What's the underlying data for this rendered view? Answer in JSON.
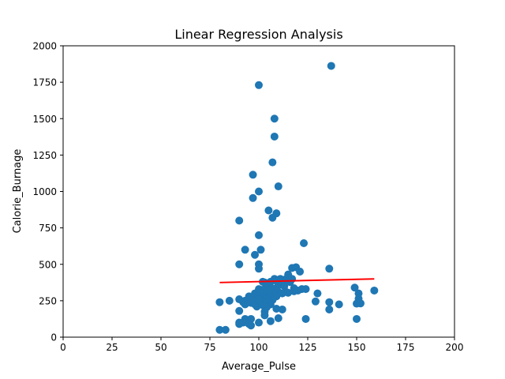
{
  "chart_data": {
    "type": "scatter",
    "title": "Linear Regression Analysis",
    "xlabel": "Average_Pulse",
    "ylabel": "Calorie_Burnage",
    "xlim": [
      0,
      200
    ],
    "ylim": [
      0,
      2000
    ],
    "xticks": [
      0,
      25,
      50,
      75,
      100,
      125,
      150,
      175,
      200
    ],
    "yticks": [
      0,
      250,
      500,
      750,
      1000,
      1250,
      1500,
      1750,
      2000
    ],
    "grid": false,
    "legend": "none",
    "colors": {
      "points": "#1f77b4",
      "line": "#ff0000"
    },
    "series": [
      {
        "type": "scatter",
        "points": [
          [
            100,
            1730
          ],
          [
            137,
            1862
          ],
          [
            108,
            1500
          ],
          [
            108,
            1377
          ],
          [
            107,
            1200
          ],
          [
            97,
            1115
          ],
          [
            110,
            1035
          ],
          [
            100,
            1000
          ],
          [
            97,
            955
          ],
          [
            105,
            870
          ],
          [
            109,
            850
          ],
          [
            107,
            820
          ],
          [
            90,
            800
          ],
          [
            100,
            700
          ],
          [
            123,
            645
          ],
          [
            93,
            600
          ],
          [
            101,
            600
          ],
          [
            98,
            565
          ],
          [
            90,
            500
          ],
          [
            100,
            500
          ],
          [
            117,
            475
          ],
          [
            119,
            480
          ],
          [
            136,
            470
          ],
          [
            100,
            470
          ],
          [
            115,
            430
          ],
          [
            121,
            450
          ],
          [
            108,
            400
          ],
          [
            111,
            400
          ],
          [
            114,
            400
          ],
          [
            117,
            400
          ],
          [
            102,
            380
          ],
          [
            103,
            375
          ],
          [
            106,
            380
          ],
          [
            109,
            385
          ],
          [
            112,
            382
          ],
          [
            116,
            378
          ],
          [
            105,
            360
          ],
          [
            110,
            355
          ],
          [
            113,
            350
          ],
          [
            104,
            340
          ],
          [
            107,
            335
          ],
          [
            118,
            336
          ],
          [
            100,
            330
          ],
          [
            102,
            325
          ],
          [
            106,
            320
          ],
          [
            110,
            310
          ],
          [
            114,
            310
          ],
          [
            118,
            315
          ],
          [
            122,
            330
          ],
          [
            124,
            330
          ],
          [
            130,
            300
          ],
          [
            149,
            340
          ],
          [
            151,
            300
          ],
          [
            159,
            320
          ],
          [
            98,
            300
          ],
          [
            101,
            300
          ],
          [
            104,
            295
          ],
          [
            108,
            290
          ],
          [
            112,
            300
          ],
          [
            115,
            305
          ],
          [
            120,
            320
          ],
          [
            95,
            280
          ],
          [
            99,
            280
          ],
          [
            103,
            275
          ],
          [
            106,
            270
          ],
          [
            109,
            280
          ],
          [
            96,
            270
          ],
          [
            100,
            260
          ],
          [
            104,
            260
          ],
          [
            107,
            255
          ],
          [
            90,
            260
          ],
          [
            93,
            250
          ],
          [
            97,
            250
          ],
          [
            101,
            245
          ],
          [
            105,
            245
          ],
          [
            85,
            250
          ],
          [
            92,
            240
          ],
          [
            96,
            235
          ],
          [
            100,
            235
          ],
          [
            103,
            230
          ],
          [
            80,
            240
          ],
          [
            93,
            225
          ],
          [
            98,
            225
          ],
          [
            102,
            220
          ],
          [
            106,
            225
          ],
          [
            129,
            245
          ],
          [
            136,
            240
          ],
          [
            141,
            225
          ],
          [
            150,
            230
          ],
          [
            152,
            232
          ],
          [
            151,
            265
          ],
          [
            99,
            210
          ],
          [
            104,
            205
          ],
          [
            109,
            195
          ],
          [
            112,
            190
          ],
          [
            136,
            190
          ],
          [
            90,
            180
          ],
          [
            103,
            175
          ],
          [
            103,
            150
          ],
          [
            93,
            125
          ],
          [
            96,
            125
          ],
          [
            110,
            130
          ],
          [
            124,
            125
          ],
          [
            150,
            125
          ],
          [
            90,
            100
          ],
          [
            92,
            100
          ],
          [
            95,
            90
          ],
          [
            100,
            100
          ],
          [
            106,
            110
          ],
          [
            90,
            90
          ],
          [
            96,
            80
          ],
          [
            80,
            50
          ],
          [
            83,
            50
          ]
        ]
      },
      {
        "type": "line",
        "points": [
          [
            80,
            375
          ],
          [
            159,
            400
          ]
        ]
      }
    ]
  }
}
